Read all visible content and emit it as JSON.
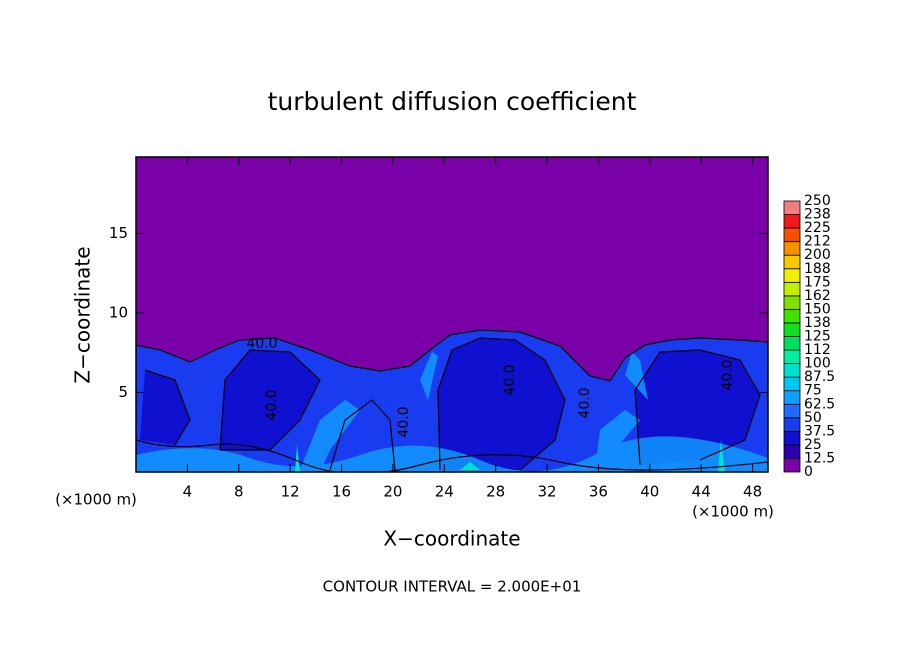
{
  "chart_data": {
    "type": "heatmap",
    "title": "turbulent diffusion coefficient",
    "xlabel": "X−coordinate",
    "ylabel": "Z−coordinate",
    "x_unit_label": "(×1000 m)",
    "footer": "CONTOUR INTERVAL = 2.000E+01",
    "xlim": [
      0,
      49.2
    ],
    "xticks": [
      4,
      8,
      12,
      16,
      20,
      24,
      28,
      32,
      36,
      40,
      44,
      48
    ],
    "ylim": [
      0,
      19.8
    ],
    "yticks": [
      5,
      10,
      15
    ],
    "contour_labels": [
      "40.0",
      "40.0",
      "40.0",
      "40.0",
      "40.0",
      "40.0"
    ],
    "colorbar": {
      "levels": [
        0,
        12.5,
        25,
        37.5,
        50,
        62.5,
        75,
        87.5,
        100,
        112,
        125,
        138,
        150,
        162,
        175,
        188,
        200,
        212,
        225,
        238,
        250
      ],
      "colors": [
        "#7a00a8",
        "#2a00b0",
        "#1010d0",
        "#1a3cf0",
        "#1e6cff",
        "#10a0ff",
        "#00c8f0",
        "#00e0d0",
        "#00f0a0",
        "#00e060",
        "#10e020",
        "#40e000",
        "#80e000",
        "#c0f000",
        "#f0f000",
        "#f8c800",
        "#f89000",
        "#f85000",
        "#f01818",
        "#f08080"
      ]
    }
  }
}
